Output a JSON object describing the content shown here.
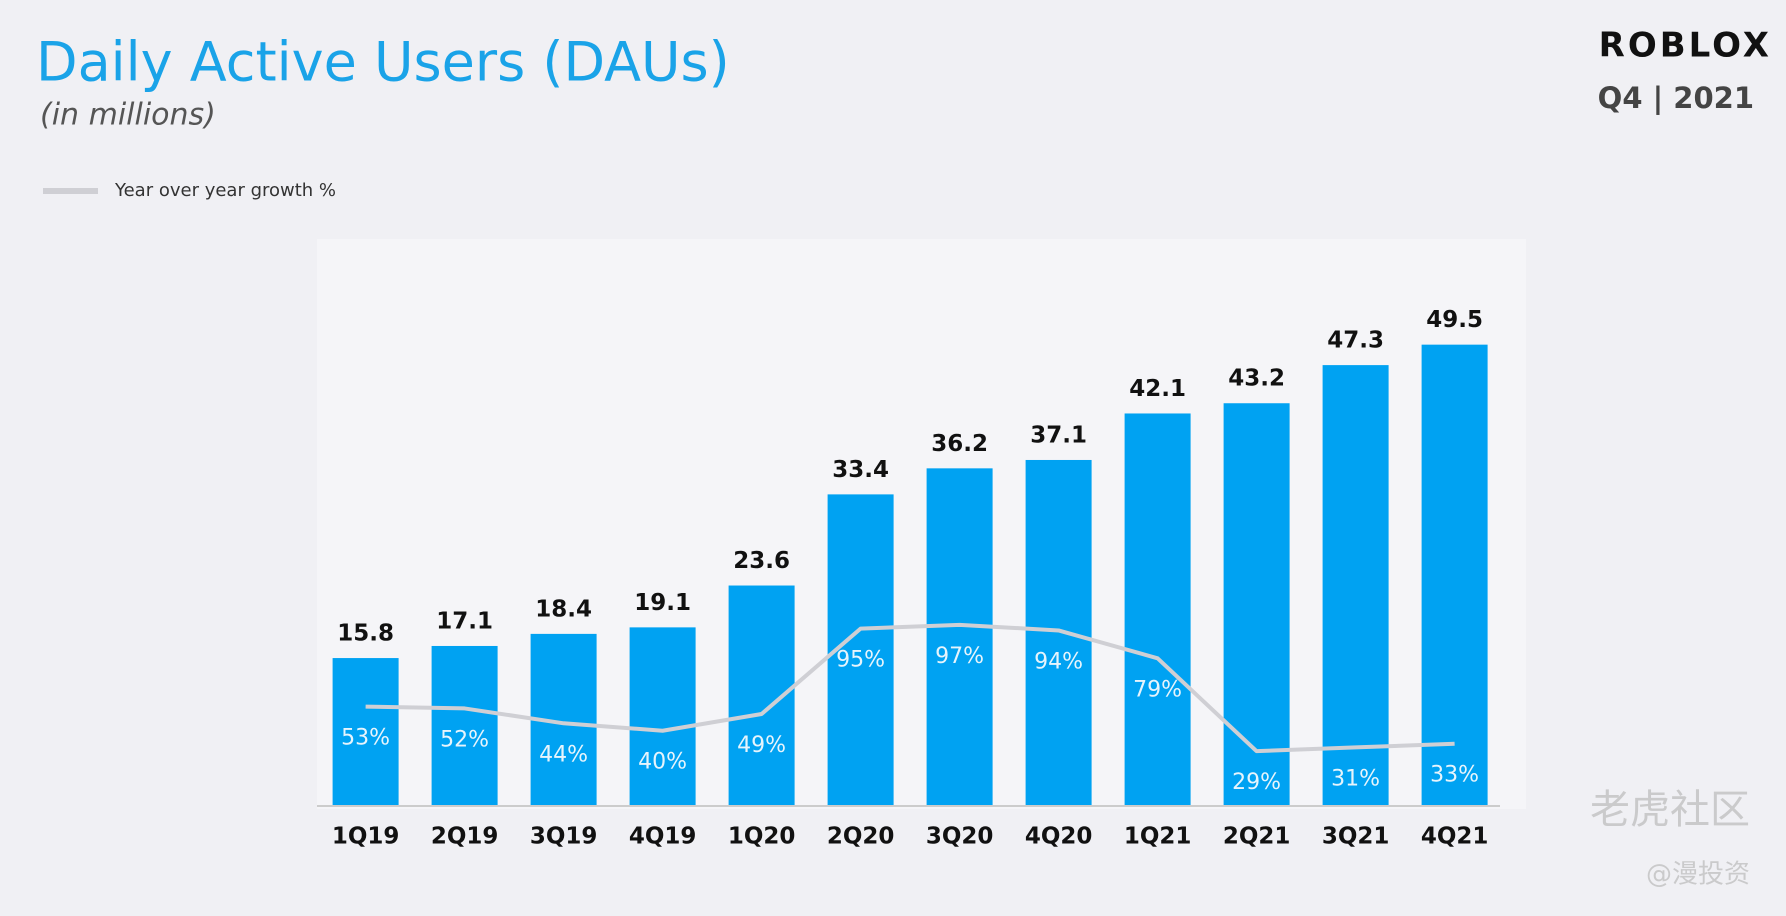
{
  "header": {
    "logo": "ROBLOX",
    "period": "Q4 | 2021"
  },
  "chart_data": {
    "type": "bar",
    "title": "Daily Active Users (DAUs)",
    "subtitle": "(in millions)",
    "categories": [
      "1Q19",
      "2Q19",
      "3Q19",
      "4Q19",
      "1Q20",
      "2Q20",
      "3Q20",
      "4Q20",
      "1Q21",
      "2Q21",
      "3Q21",
      "4Q21"
    ],
    "values": [
      15.8,
      17.1,
      18.4,
      19.1,
      23.6,
      33.4,
      36.2,
      37.1,
      42.1,
      43.2,
      47.3,
      49.5
    ],
    "color": "#00a2f2",
    "series": [
      {
        "name": "Year over year growth %",
        "type": "line",
        "color": "#cfcfd4",
        "values": [
          53,
          52,
          44,
          40,
          49,
          95,
          97,
          94,
          79,
          29,
          31,
          33
        ],
        "value_labels": [
          "53%",
          "52%",
          "44%",
          "40%",
          "49%",
          "95%",
          "97%",
          "94%",
          "79%",
          "29%",
          "31%",
          "33%"
        ]
      }
    ]
  },
  "watermark": {
    "site": "老虎社区",
    "author": "@漫投资"
  }
}
